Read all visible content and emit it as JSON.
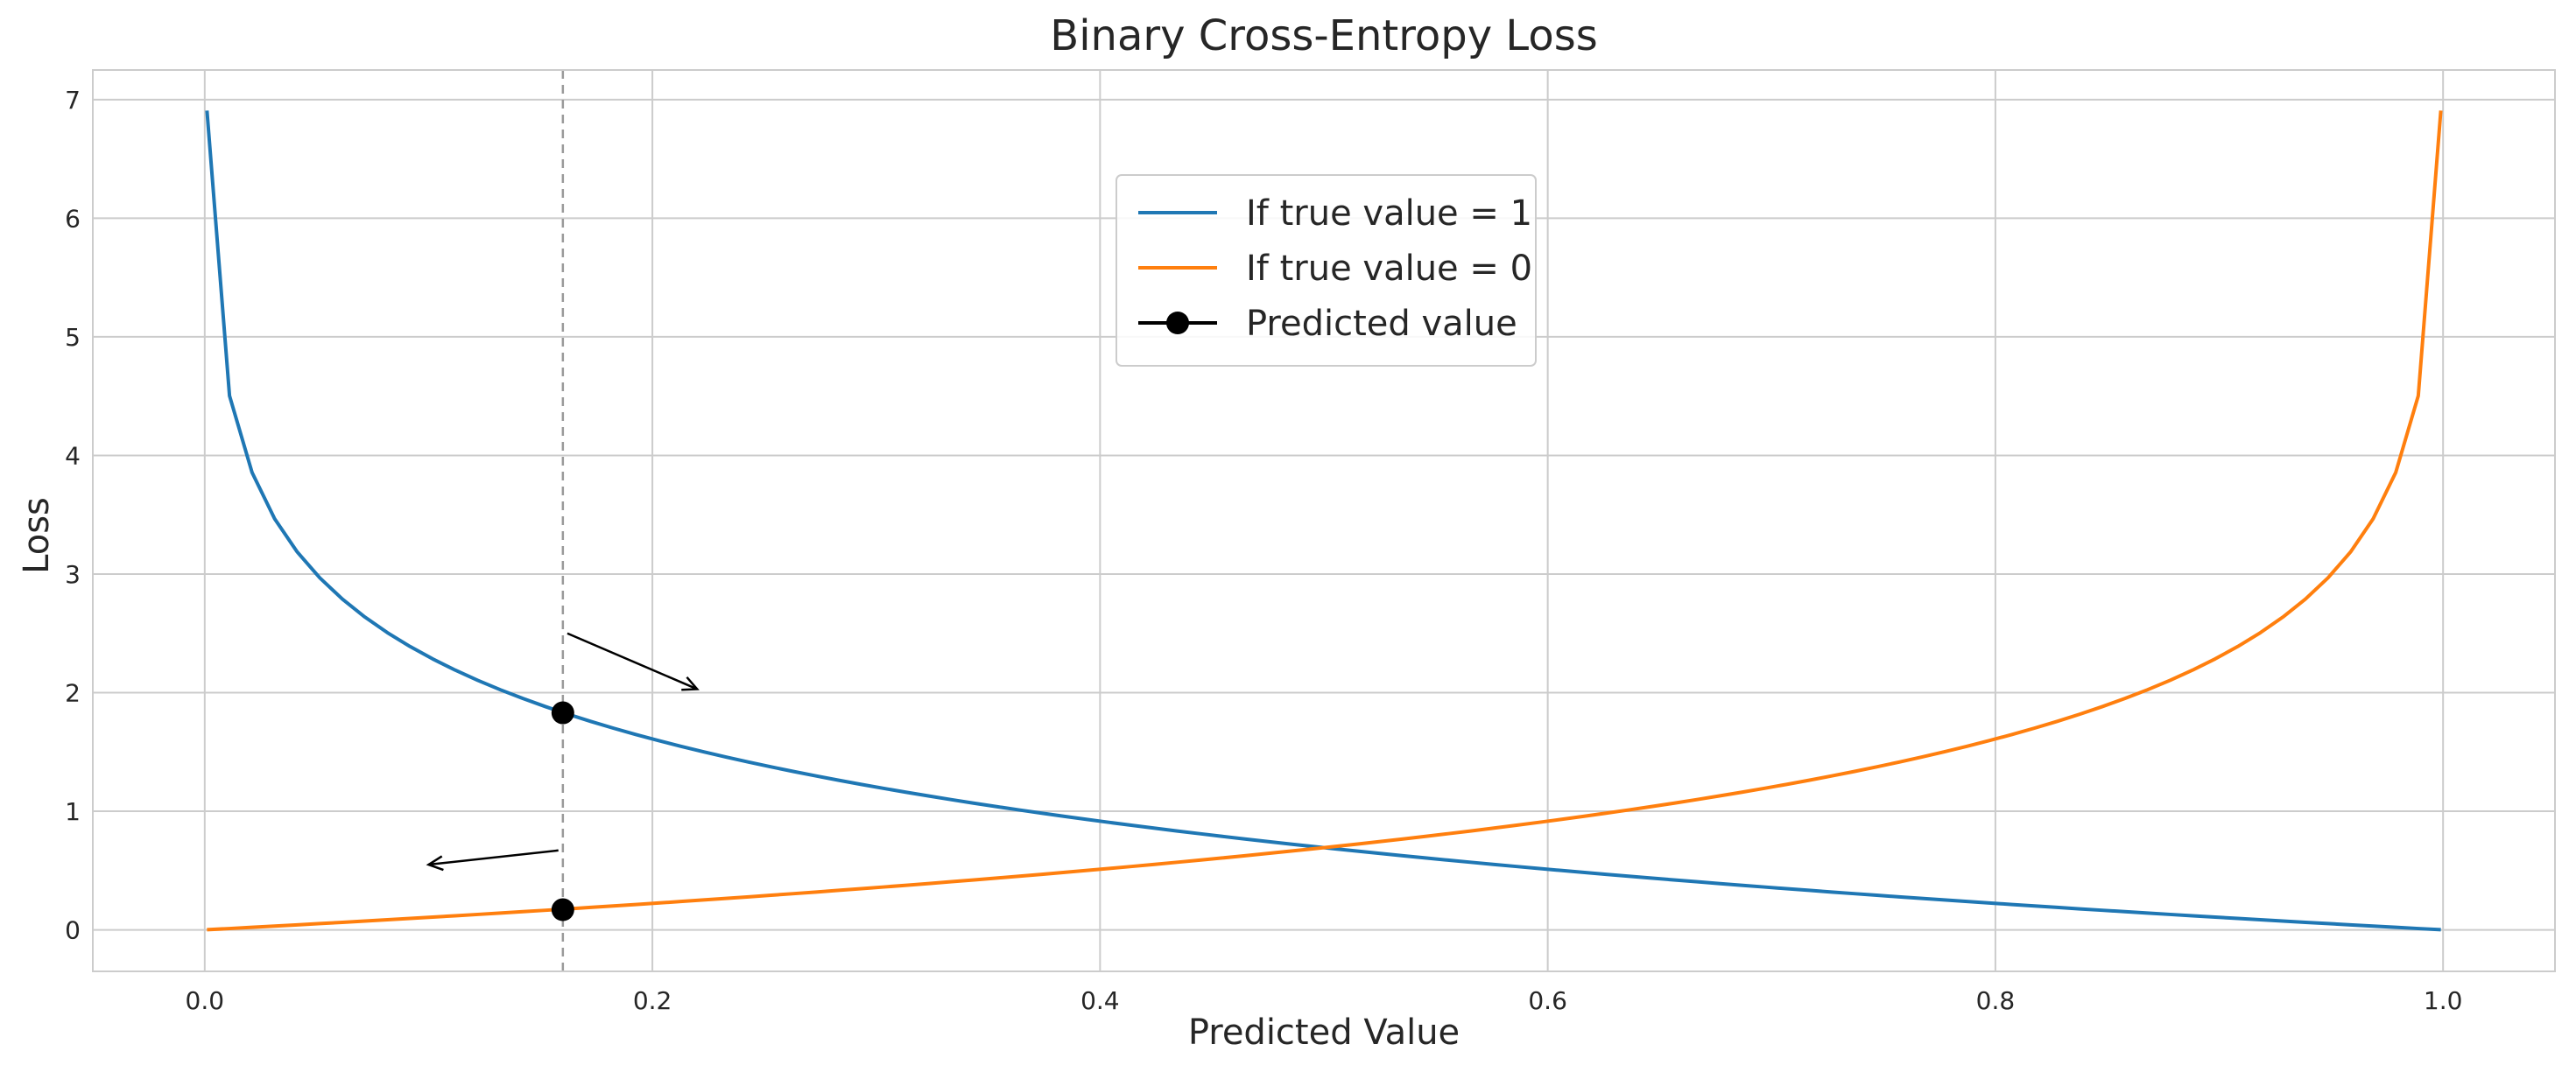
{
  "chart_data": {
    "type": "line",
    "title": "Binary Cross-Entropy Loss",
    "xlabel": "Predicted Value",
    "ylabel": "Loss",
    "xlim": [
      -0.05,
      1.05
    ],
    "ylim": [
      -0.35,
      7.25
    ],
    "xticks": [
      "0.0",
      "0.2",
      "0.4",
      "0.6",
      "0.8",
      "1.0"
    ],
    "yticks": [
      "0",
      "1",
      "2",
      "3",
      "4",
      "5",
      "6",
      "7"
    ],
    "grid": true,
    "legend_position": "upper center",
    "series": [
      {
        "name": "If true value = 1",
        "color": "#1f77b4",
        "formula": "-ln(p)",
        "x_range": [
          0.001,
          0.999
        ],
        "points": 100
      },
      {
        "name": "If true value = 0",
        "color": "#ff7f0e",
        "formula": "-ln(1-p)",
        "x_range": [
          0.001,
          0.999
        ],
        "points": 100
      },
      {
        "name": "Predicted value",
        "color": "#000000",
        "x": [
          0.16,
          0.16
        ],
        "y": [
          1.83,
          0.17
        ]
      }
    ],
    "reference_line": {
      "x": 0.16,
      "style": "dashed",
      "color": "#999999"
    },
    "arrows": [
      {
        "from": [
          0.162,
          2.5
        ],
        "to": [
          0.22,
          2.03
        ]
      },
      {
        "from": [
          0.158,
          0.67
        ],
        "to": [
          0.1,
          0.55
        ]
      }
    ]
  }
}
